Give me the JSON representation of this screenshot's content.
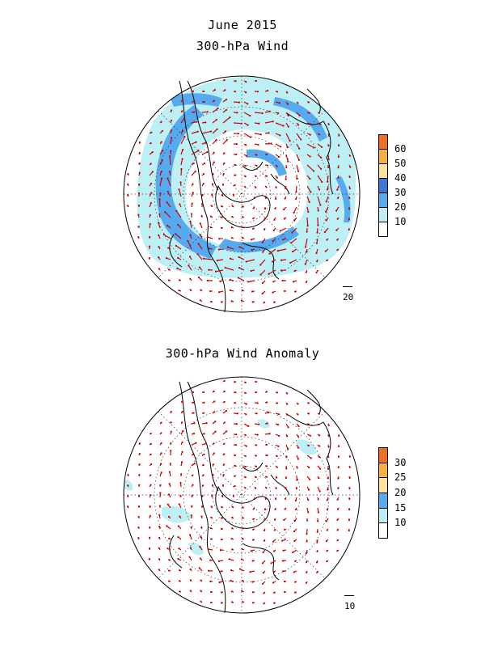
{
  "figure": {
    "title": "June 2015"
  },
  "panels": [
    {
      "title": "300-hPa Wind",
      "colorbar": {
        "levels": [
          "10",
          "20",
          "30",
          "40",
          "50",
          "60"
        ],
        "colors": [
          "#ffffff",
          "#bdf0f4",
          "#55aaf0",
          "#3a78dc",
          "#fde39c",
          "#f7b03e",
          "#f07020"
        ]
      },
      "reference_vector": "20"
    },
    {
      "title": "300-hPa Wind Anomaly",
      "colorbar": {
        "levels": [
          "10",
          "15",
          "20",
          "25",
          "30"
        ],
        "colors": [
          "#ffffff",
          "#bdf0f4",
          "#55aaf0",
          "#fde39c",
          "#f7b03e",
          "#f07020"
        ]
      },
      "reference_vector": "10"
    }
  ],
  "styles": {
    "vector_color": "#cc0000",
    "coast_color": "#000000",
    "grid_color": "#333333"
  }
}
